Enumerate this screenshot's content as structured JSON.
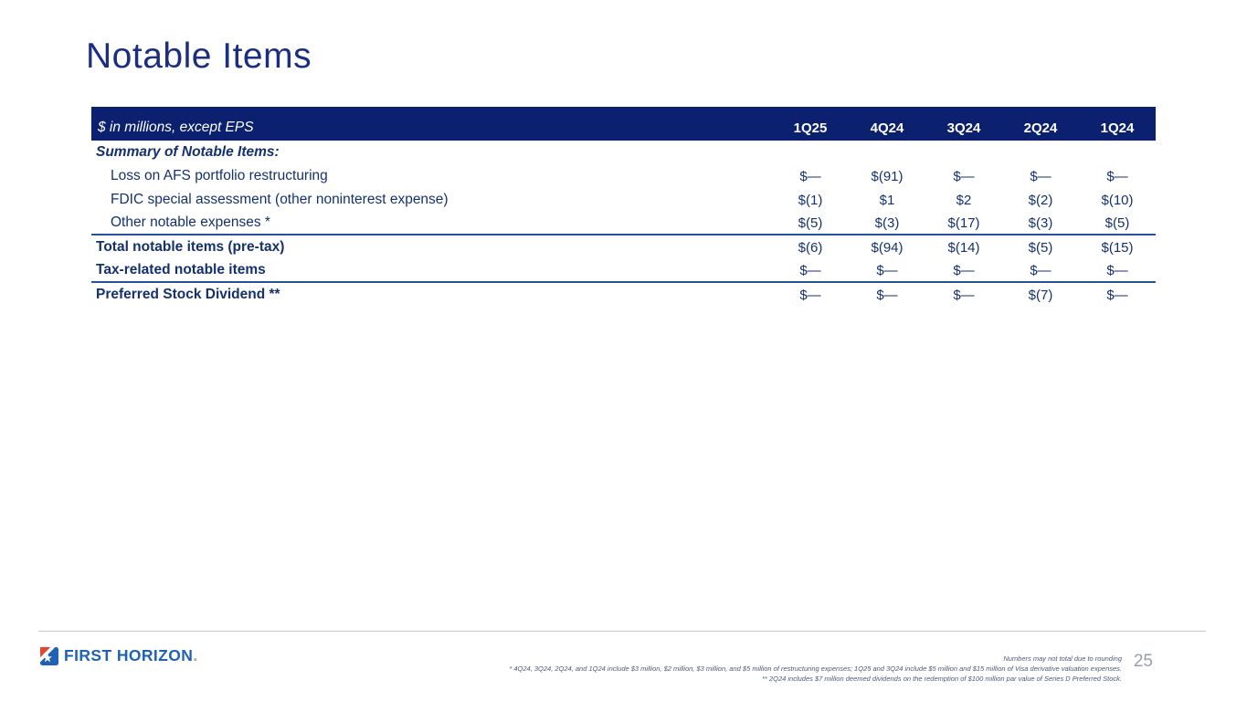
{
  "slide": {
    "title": "Notable Items"
  },
  "table": {
    "header_label": "$ in millions, except EPS",
    "columns": [
      "1Q25",
      "4Q24",
      "3Q24",
      "2Q24",
      "1Q24"
    ],
    "section_header": "Summary of Notable Items:",
    "rows": [
      {
        "label": "Loss on AFS portfolio restructuring",
        "indent": true,
        "bold": false,
        "rule_below": false,
        "values": [
          "$—",
          "$(91)",
          "$—",
          "$—",
          "$—"
        ]
      },
      {
        "label": "FDIC special assessment (other noninterest expense)",
        "indent": true,
        "bold": false,
        "rule_below": false,
        "values": [
          "$(1)",
          "$1",
          "$2",
          "$(2)",
          "$(10)"
        ]
      },
      {
        "label": "Other notable expenses *",
        "indent": true,
        "bold": false,
        "rule_below": true,
        "values": [
          "$(5)",
          "$(3)",
          "$(17)",
          "$(3)",
          "$(5)"
        ]
      },
      {
        "label": "Total notable items (pre-tax)",
        "indent": false,
        "bold": true,
        "rule_below": false,
        "values": [
          "$(6)",
          "$(94)",
          "$(14)",
          "$(5)",
          "$(15)"
        ]
      },
      {
        "label": "Tax-related notable items",
        "indent": false,
        "bold": true,
        "rule_below": true,
        "values": [
          "$—",
          "$—",
          "$—",
          "$—",
          "$—"
        ]
      },
      {
        "label": "Preferred Stock Dividend **",
        "indent": false,
        "bold": true,
        "rule_below": false,
        "values": [
          "$—",
          "$—",
          "$—",
          "$(7)",
          "$—"
        ]
      }
    ]
  },
  "footer": {
    "logo_text": "FIRST HORIZON",
    "logo_period": ".",
    "footnotes": [
      "Numbers may not total due to rounding",
      "* 4Q24, 3Q24, 2Q24, and 1Q24 include $3 million, $2 million, $3 million, and $5 million of restructuring expenses; 1Q25 and 3Q24 include $5 million and $15 million of Visa derivative valuation expenses.",
      "** 2Q24 includes $7 million deemed dividends on the redemption of $100 million par value of Series D Preferred Stock."
    ],
    "page_number": "25"
  },
  "colors": {
    "header_bar": "#0b2170",
    "table_text": "#14316e",
    "title": "#1b2e80",
    "divider_rule": "#27509b",
    "logo_blue": "#2063b4",
    "logo_red": "#e0492f",
    "footnote_gray": "#4a5a78",
    "page_number_gray": "#98a0ad"
  }
}
